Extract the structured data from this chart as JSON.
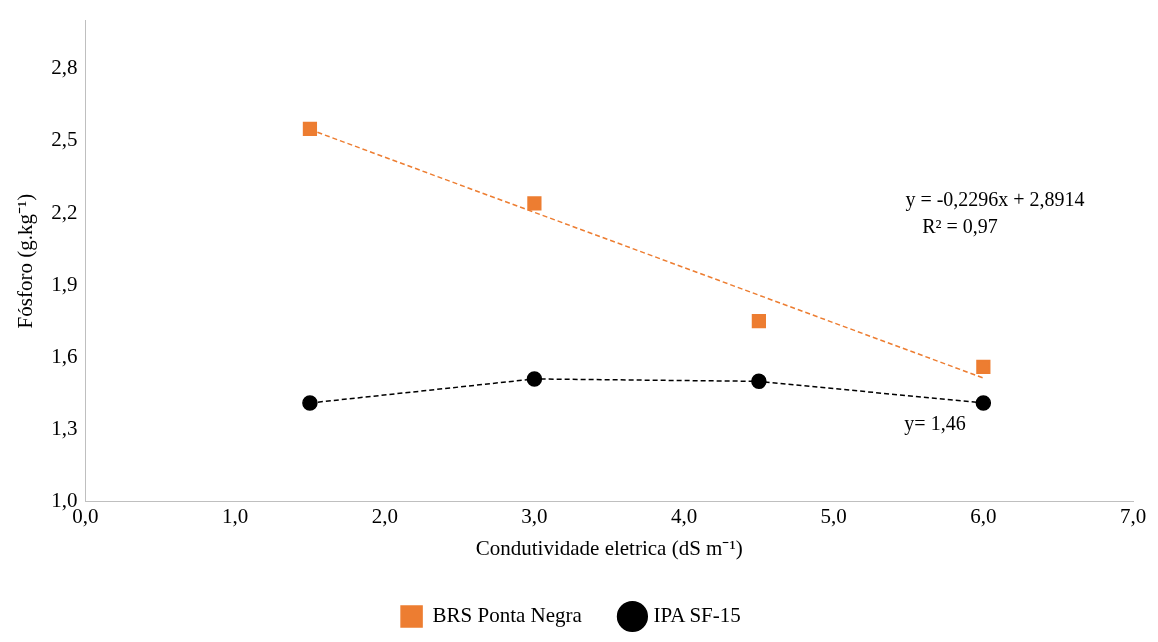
{
  "chart_data": {
    "type": "scatter",
    "xlabel": "Condutividade eletrica (dS m⁻¹)",
    "ylabel": "Fósforo (g.kg⁻¹)",
    "x": [
      1.5,
      3.0,
      4.5,
      6.0
    ],
    "series": [
      {
        "name": "BRS Ponta Negra",
        "color": "#ed7d31",
        "marker": "square",
        "values": [
          2.55,
          2.24,
          1.75,
          1.56
        ]
      },
      {
        "name": "IPA SF-15",
        "type": "line",
        "color": "#000000",
        "marker": "circle",
        "line_style": "dashed",
        "values": [
          1.41,
          1.51,
          1.5,
          1.41
        ]
      },
      {
        "type": "line",
        "color": "#ed7d31",
        "marker": "none",
        "line_style": "dashed",
        "x": [
          1.5,
          6.0
        ],
        "values": [
          2.547,
          1.514
        ]
      }
    ],
    "xlim": [
      0,
      7
    ],
    "xticks": [
      {
        "value": 0,
        "label": "0,0"
      },
      {
        "value": 1,
        "label": "1,0"
      },
      {
        "value": 2,
        "label": "2,0"
      },
      {
        "value": 3,
        "label": "3,0"
      },
      {
        "value": 4,
        "label": "4,0"
      },
      {
        "value": 5,
        "label": "5,0"
      },
      {
        "value": 6,
        "label": "6,0"
      },
      {
        "value": 7,
        "label": "7,0"
      }
    ],
    "ylim": [
      1,
      3
    ],
    "yticks": [
      {
        "value": 1,
        "label": "1,0"
      },
      {
        "value": 1.3,
        "label": "1,3"
      },
      {
        "value": 1.6,
        "label": "1,6"
      },
      {
        "value": 1.9,
        "label": "1,9"
      },
      {
        "value": 2.2,
        "label": "2,2"
      },
      {
        "value": 2.5,
        "label": "2,5"
      },
      {
        "value": 2.8,
        "label": "2,8"
      }
    ],
    "grid": false,
    "legend": "bottom",
    "annotations": [
      "y = -0,2296x + 2,8914",
      "R² = 0,97",
      "y= 1,46"
    ]
  }
}
